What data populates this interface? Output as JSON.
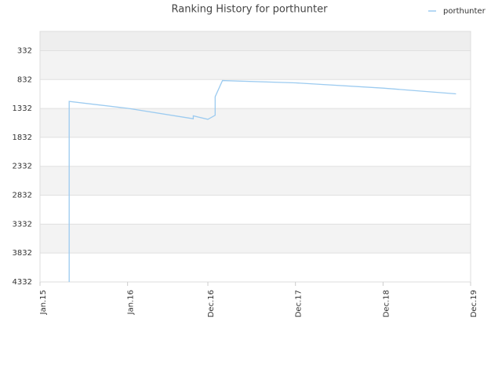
{
  "chart_data": {
    "type": "line",
    "title": "Ranking History for porthunter",
    "series": [
      {
        "name": "porthunter",
        "color": "#9ccbf0",
        "x": [
          "2015-05",
          "2015-05",
          "2015-05",
          "2016-01",
          "2016-10",
          "2016-10",
          "2016-12",
          "2017-01",
          "2017-01",
          "2017-02",
          "2017-12",
          "2018-12",
          "2019-10"
        ],
        "values": [
          4332,
          1600,
          1210,
          1330,
          1510,
          1460,
          1520,
          1450,
          1130,
          850,
          890,
          980,
          1080
        ]
      }
    ],
    "xlim": [
      "2015-01",
      "2019-12"
    ],
    "xticks": [
      {
        "value": "2015-01",
        "label": "Jan.15"
      },
      {
        "value": "2016-01",
        "label": "Jan.16"
      },
      {
        "value": "2016-12",
        "label": "Dec.16"
      },
      {
        "value": "2017-12",
        "label": "Dec.17"
      },
      {
        "value": "2018-12",
        "label": "Dec.18"
      },
      {
        "value": "2019-12",
        "label": "Dec.19"
      }
    ],
    "ylim": [
      4332,
      0
    ],
    "yticks": [
      332,
      832,
      1332,
      1832,
      2332,
      2832,
      3332,
      3832,
      4332
    ],
    "grid": true,
    "legend": "top-right"
  }
}
